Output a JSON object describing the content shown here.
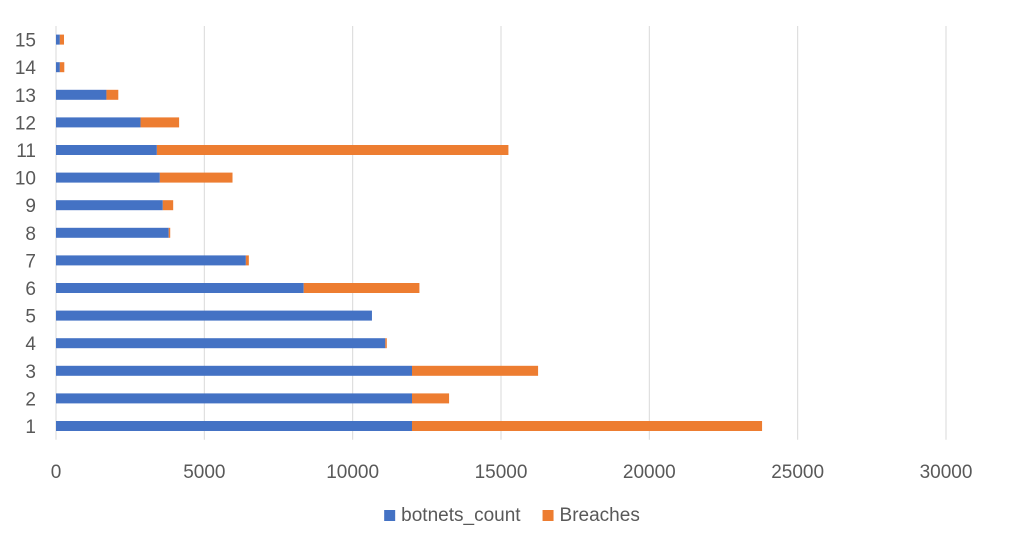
{
  "chart_data": {
    "type": "bar",
    "orientation": "horizontal",
    "stacked": true,
    "categories": [
      "1",
      "2",
      "3",
      "4",
      "5",
      "6",
      "7",
      "8",
      "9",
      "10",
      "11",
      "12",
      "13",
      "14",
      "15"
    ],
    "series": [
      {
        "name": "botnets_count",
        "color": "#4472C4",
        "values": [
          12000,
          12000,
          12000,
          11100,
          10650,
          8350,
          6400,
          3800,
          3600,
          3500,
          3400,
          2850,
          1700,
          130,
          130
        ]
      },
      {
        "name": "Breaches",
        "color": "#ED7D31",
        "values": [
          11800,
          1250,
          4250,
          50,
          0,
          3900,
          100,
          50,
          350,
          2450,
          11850,
          1300,
          400,
          150,
          140
        ]
      }
    ],
    "xlim": [
      0,
      30000
    ],
    "x_ticks": [
      "0",
      "5000",
      "10000",
      "15000",
      "20000",
      "25000",
      "30000"
    ],
    "grid": true,
    "legend_position": "bottom",
    "title": "",
    "xlabel": "",
    "ylabel": ""
  }
}
